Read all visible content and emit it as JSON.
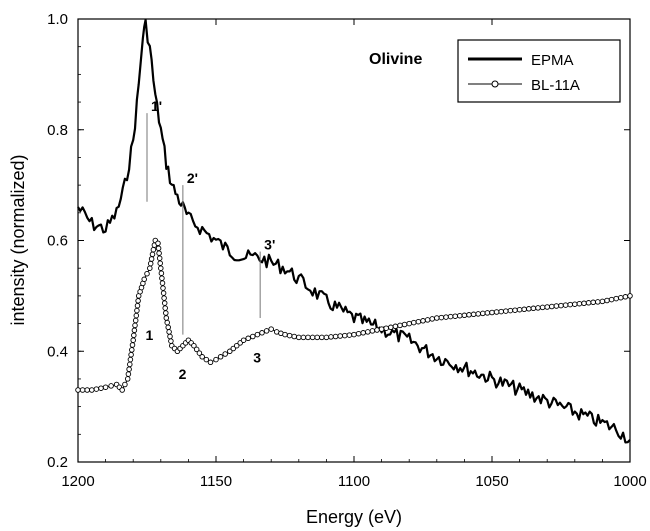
{
  "chart_data": {
    "type": "line",
    "title": "Olivine",
    "xlabel": "Energy (eV)",
    "ylabel": "intensity (normalized)",
    "xlim": [
      1200,
      1000
    ],
    "ylim": [
      0.2,
      1.0
    ],
    "x_reversed": true,
    "x_ticks": [
      1200,
      1150,
      1100,
      1050,
      1000
    ],
    "x_tick_labels": [
      "1200",
      "1150",
      "1100",
      "1050",
      "1000"
    ],
    "y_ticks": [
      0.2,
      0.4,
      0.6,
      0.8,
      1.0
    ],
    "y_tick_labels": [
      "0.2",
      "0.4",
      "0.6",
      "0.8",
      "1.0"
    ],
    "legend_position": "top-right",
    "series": [
      {
        "name": "EPMA",
        "color": "#000000",
        "style": "thick-line",
        "x": [
          1200,
          1195,
          1190,
          1186,
          1183,
          1180,
          1178,
          1176.5,
          1175.5,
          1174,
          1172,
          1170,
          1168,
          1166,
          1164,
          1162,
          1160,
          1155,
          1150,
          1145,
          1140,
          1135,
          1130,
          1125,
          1120,
          1115,
          1110,
          1100,
          1090,
          1080,
          1070,
          1060,
          1050,
          1040,
          1030,
          1020,
          1010,
          1005,
          1000
        ],
        "y": [
          0.66,
          0.63,
          0.62,
          0.65,
          0.7,
          0.78,
          0.88,
          0.97,
          0.99,
          0.95,
          0.86,
          0.8,
          0.74,
          0.7,
          0.68,
          0.66,
          0.64,
          0.62,
          0.6,
          0.58,
          0.57,
          0.57,
          0.56,
          0.55,
          0.53,
          0.51,
          0.49,
          0.46,
          0.44,
          0.42,
          0.39,
          0.37,
          0.35,
          0.33,
          0.31,
          0.29,
          0.27,
          0.26,
          0.24
        ]
      },
      {
        "name": "BL-11A",
        "color": "#000000",
        "style": "line-with-open-circles",
        "x": [
          1200,
          1195,
          1190,
          1186,
          1184,
          1182,
          1180,
          1178,
          1176,
          1174,
          1172,
          1171,
          1170,
          1168,
          1166,
          1164,
          1162,
          1160,
          1158,
          1155,
          1152,
          1150,
          1145,
          1140,
          1135,
          1130,
          1128,
          1125,
          1120,
          1115,
          1110,
          1100,
          1090,
          1080,
          1070,
          1060,
          1050,
          1040,
          1030,
          1020,
          1010,
          1000
        ],
        "y": [
          0.33,
          0.33,
          0.335,
          0.34,
          0.33,
          0.35,
          0.42,
          0.5,
          0.53,
          0.55,
          0.6,
          0.595,
          0.55,
          0.46,
          0.41,
          0.4,
          0.41,
          0.42,
          0.41,
          0.39,
          0.38,
          0.385,
          0.4,
          0.42,
          0.43,
          0.44,
          0.435,
          0.43,
          0.425,
          0.425,
          0.425,
          0.43,
          0.44,
          0.45,
          0.46,
          0.465,
          0.47,
          0.475,
          0.48,
          0.485,
          0.49,
          0.5
        ]
      }
    ],
    "peak_markers": [
      {
        "label": "1'",
        "x": 1175,
        "y_top": 0.83,
        "y_bottom": 0.67
      },
      {
        "label": "2'",
        "x": 1162,
        "y_top": 0.7,
        "y_bottom": 0.43
      },
      {
        "label": "3'",
        "x": 1134,
        "y_top": 0.58,
        "y_bottom": 0.46
      },
      {
        "label": "1",
        "x": 1169,
        "y_text": 0.42
      },
      {
        "label": "2",
        "x": 1157,
        "y_text": 0.35
      },
      {
        "label": "3",
        "x": 1130,
        "y_text": 0.38
      }
    ]
  }
}
